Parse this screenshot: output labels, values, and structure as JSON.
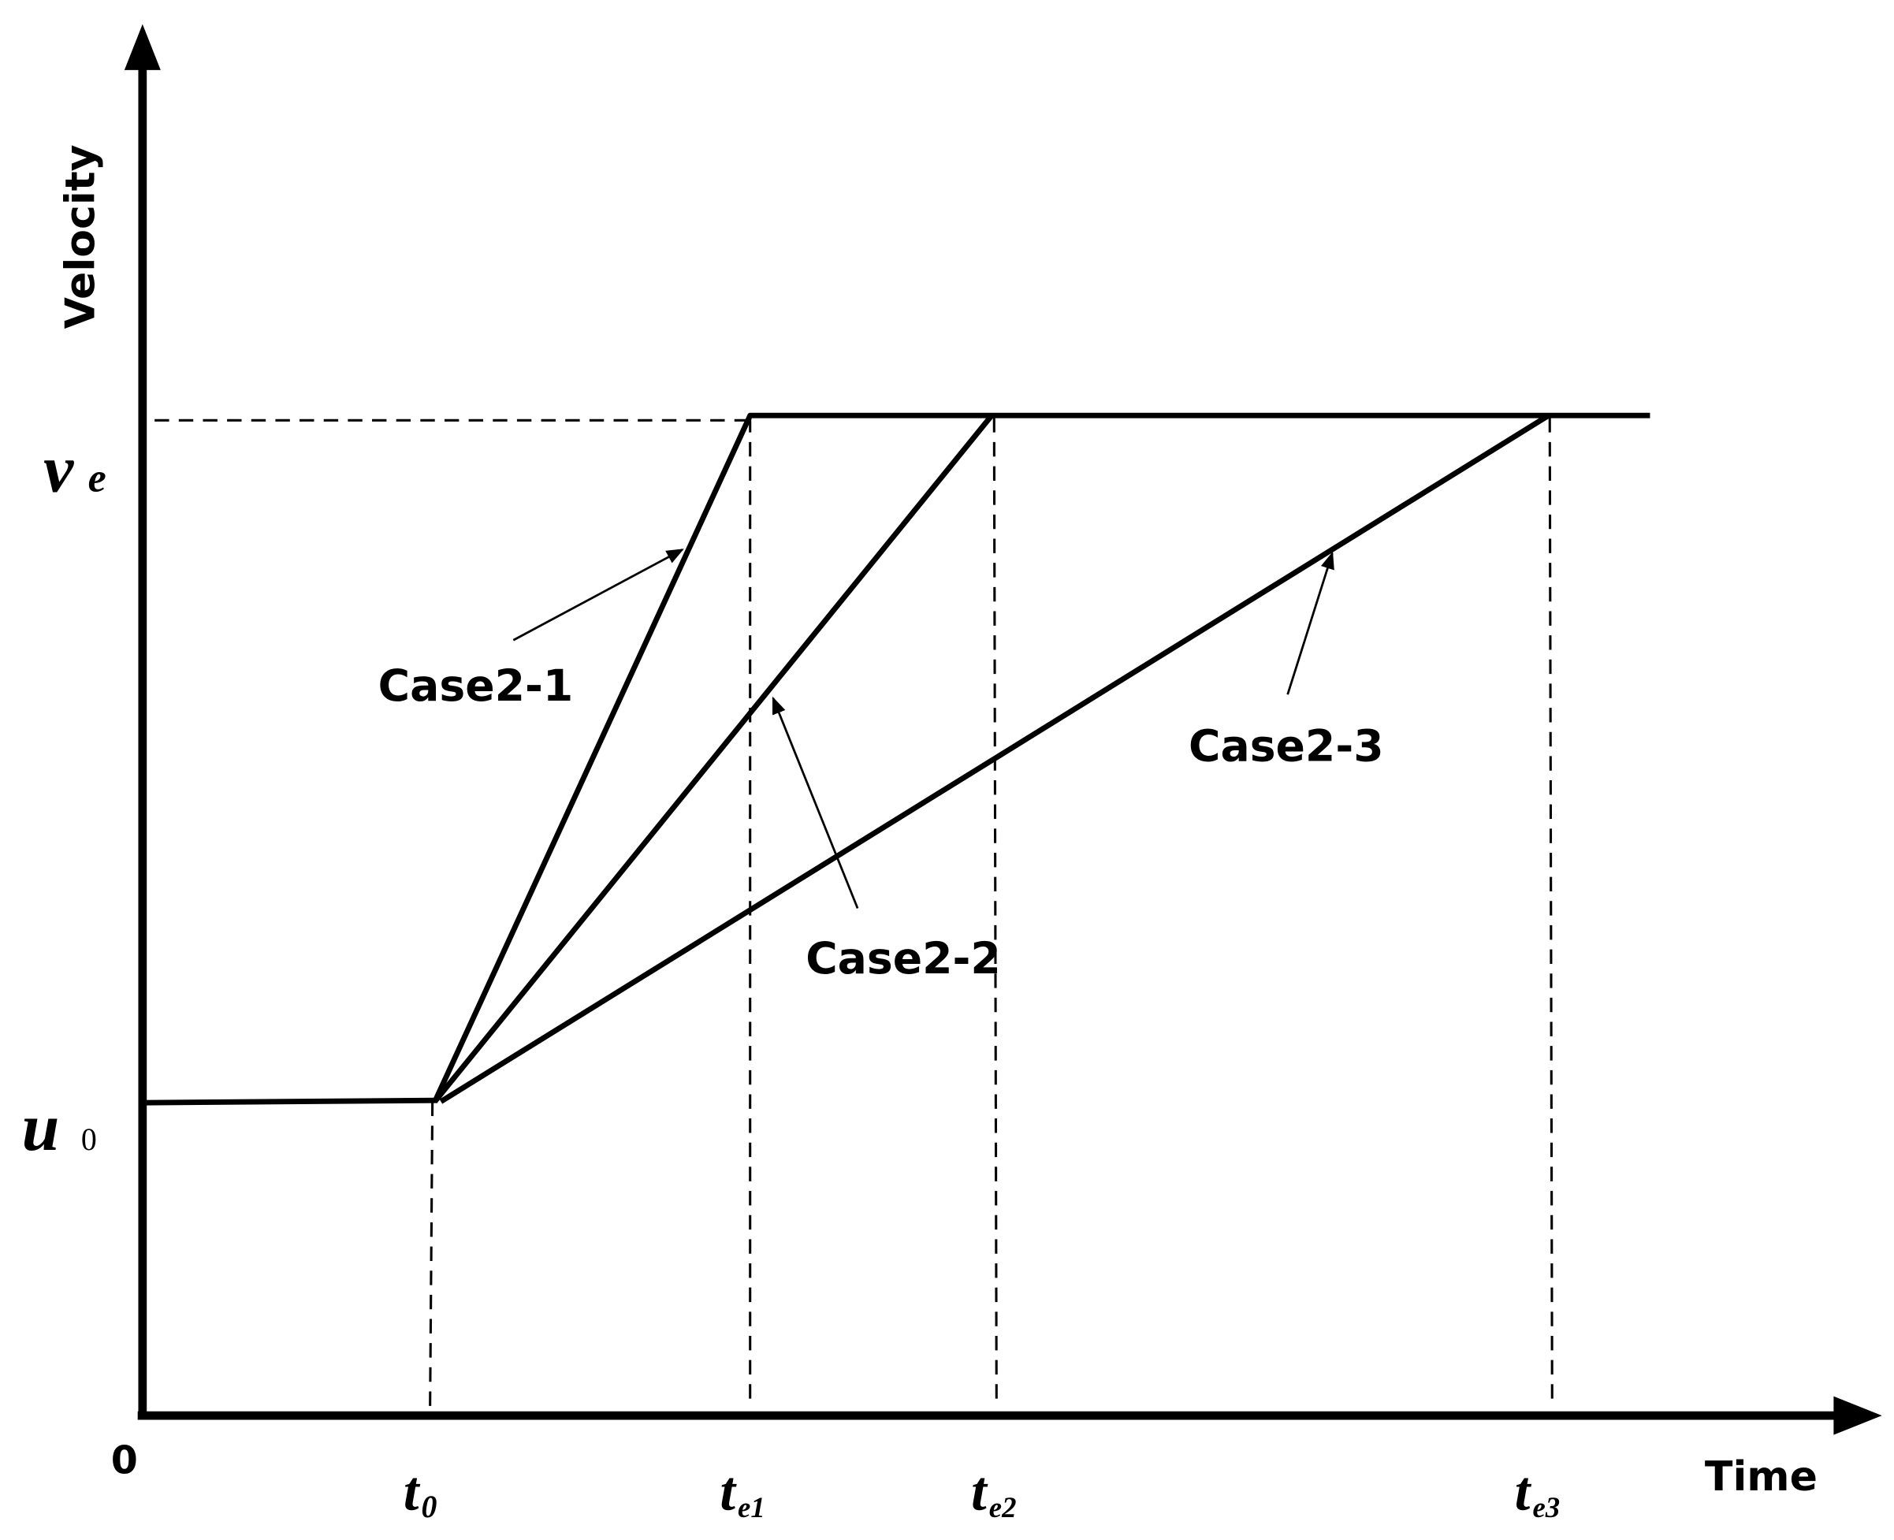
{
  "axes": {
    "y_label": "Velocity",
    "x_label": "Time",
    "origin": "0"
  },
  "y_marks": [
    {
      "symbol": "v",
      "subscript": "e"
    },
    {
      "symbol": "u",
      "subscript": "0"
    }
  ],
  "x_marks": [
    {
      "symbol": "t",
      "subscript": "0"
    },
    {
      "symbol": "t",
      "subscript": "e1"
    },
    {
      "symbol": "t",
      "subscript": "e2"
    },
    {
      "symbol": "t",
      "subscript": "e3"
    }
  ],
  "cases": [
    {
      "label": "Case2-1"
    },
    {
      "label": "Case2-2"
    },
    {
      "label": "Case2-3"
    }
  ]
}
